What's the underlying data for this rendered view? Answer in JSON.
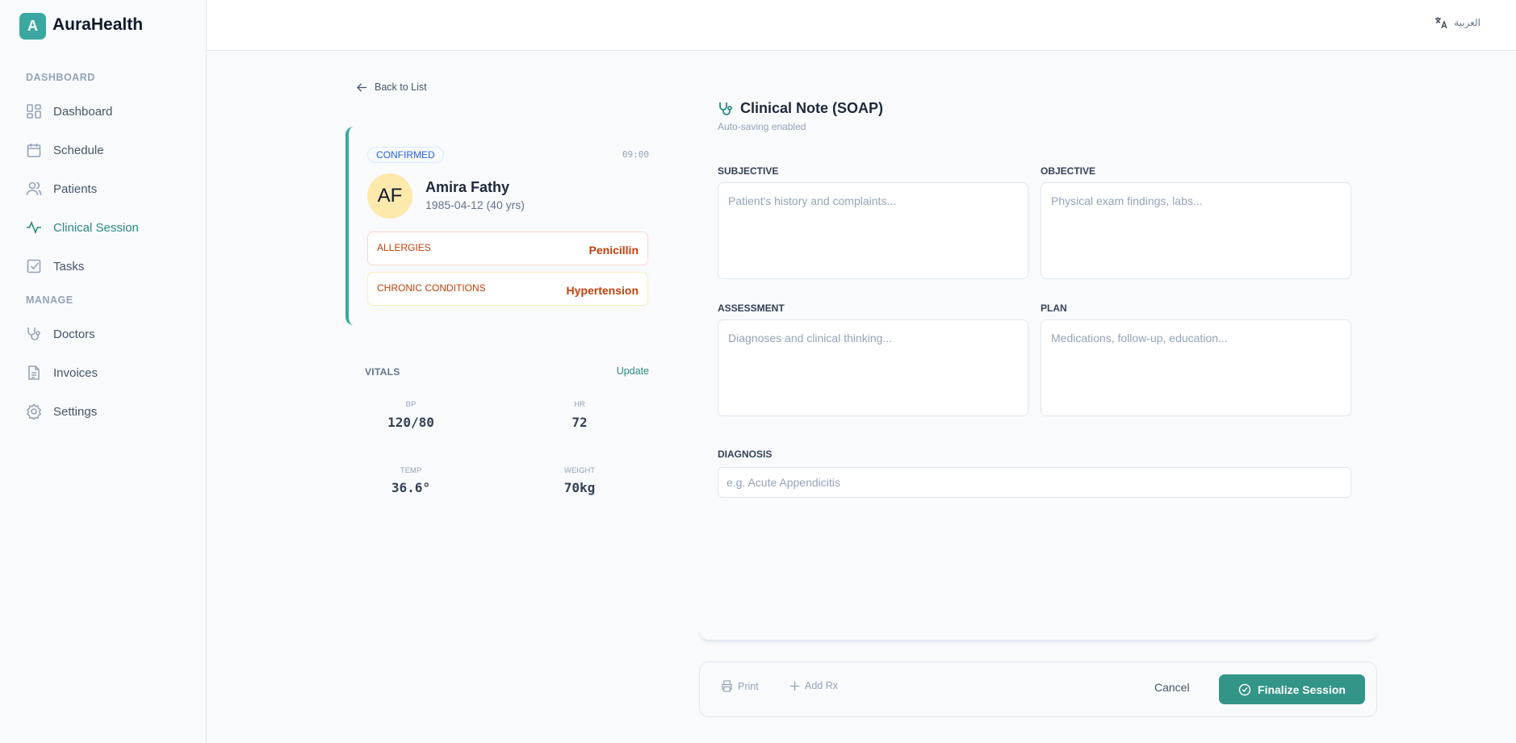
{
  "brand": {
    "logo_letter": "A",
    "name": "AuraHealth",
    "accent": "#3aa8a0"
  },
  "sidebar": {
    "sections": [
      "DASHBOARD",
      "MANAGE"
    ],
    "items": [
      {
        "label": "Dashboard",
        "icon": "grid-icon"
      },
      {
        "label": "Schedule",
        "icon": "calendar-icon"
      },
      {
        "label": "Patients",
        "icon": "users-icon"
      },
      {
        "label": "Clinical Session",
        "icon": "activity-icon",
        "active": true
      },
      {
        "label": "Tasks",
        "icon": "checkbox-icon"
      },
      {
        "label": "Doctors",
        "icon": "stethoscope-icon"
      },
      {
        "label": "Invoices",
        "icon": "file-icon"
      },
      {
        "label": "Settings",
        "icon": "gear-icon"
      }
    ]
  },
  "header": {
    "language": "العربية"
  },
  "back": "Back to List",
  "patient": {
    "status": "CONFIRMED",
    "time": "09:00",
    "initials": "AF",
    "name": "Amira Fathy",
    "dob": "1985-04-12 (40 yrs)",
    "allergies_label": "ALLERGIES",
    "allergies": "Penicillin",
    "chronic_label": "CHRONIC CONDITIONS",
    "chronic": "Hypertension"
  },
  "vitals": {
    "title": "VITALS",
    "update": "Update",
    "items": [
      {
        "label": "BP",
        "value": "120/80"
      },
      {
        "label": "HR",
        "value": "72"
      },
      {
        "label": "TEMP",
        "value": "36.6°"
      },
      {
        "label": "WEIGHT",
        "value": "70kg"
      }
    ]
  },
  "note": {
    "title": "Clinical Note (SOAP)",
    "subtitle": "Auto-saving enabled",
    "fields": [
      {
        "label": "SUBJECTIVE",
        "placeholder": "Patient's history and complaints..."
      },
      {
        "label": "OBJECTIVE",
        "placeholder": "Physical exam findings, labs..."
      },
      {
        "label": "ASSESSMENT",
        "placeholder": "Diagnoses and clinical thinking..."
      },
      {
        "label": "PLAN",
        "placeholder": "Medications, follow-up, education..."
      }
    ],
    "diagnosis_label": "DIAGNOSIS",
    "diagnosis_placeholder": "e.g. Acute Appendicitis"
  },
  "footer": {
    "print": "Print",
    "add_rx": "Add Rx",
    "cancel": "Cancel",
    "finalize": "Finalize Session"
  }
}
